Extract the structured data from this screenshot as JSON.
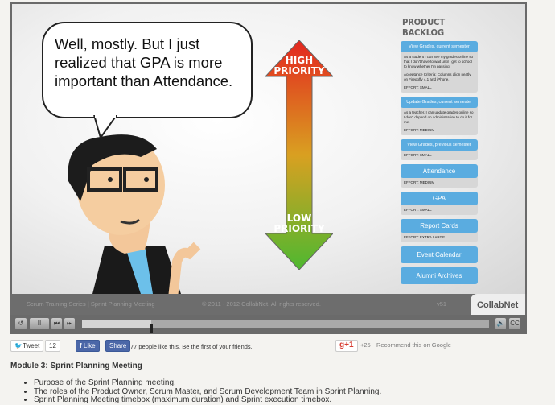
{
  "slide": {
    "speech": "Well, mostly. But I just realized that GPA is more important than Attendance.",
    "arrow": {
      "top_label": "HIGH PRIORITY",
      "bottom_label": "LOW PRIORITY"
    },
    "backlog": {
      "title": "PRODUCT BACKLOG",
      "cards": [
        {
          "title": "View Grades, current semester",
          "body": [
            "As a student I can see my grades online so that I don't have to wait until I get to school to know whether I'm passing.",
            "Acceptance Criteria: Columns align neatly on Firegoffy 4.1 and iPhone."
          ],
          "effort": "EFFORT: SMALL"
        },
        {
          "title": "Update Grades, current semester",
          "body": [
            "As a teacher, I can update grades online so I don't depend on administration to do it for me."
          ],
          "effort": "EFFORT: MEDIUM"
        },
        {
          "title": "View Grades, previous semester",
          "body": [],
          "effort": "EFFORT: SMALL"
        },
        {
          "title": "Attendance",
          "body": [],
          "effort": "EFFORT: MEDIUM"
        },
        {
          "title": "GPA",
          "body": [],
          "effort": "EFFORT: SMALL"
        },
        {
          "title": "Report Cards",
          "body": [],
          "effort": "EFFORT: EXTRA LARGE"
        }
      ],
      "buttons": [
        "Event Calendar",
        "Alumni Archives"
      ]
    }
  },
  "footer": {
    "series": "Scrum Training Series | Sprint Planning Meeting",
    "copyright": "© 2011 - 2012 CollabNet. All rights reserved.",
    "version": "v51",
    "logo": "CollabNet"
  },
  "controls": {
    "replay": "↺",
    "pause": "II",
    "prev": "⏮",
    "next": "⏭",
    "volume": "🔊",
    "cc": "CC",
    "progress_percent": 17
  },
  "social": {
    "tweet": "Tweet",
    "tweet_count": "12",
    "like": "Like",
    "share": "Share",
    "like_text": "77 people like this. Be the first of your friends.",
    "gplus": "g+1",
    "gplus_count": "+25",
    "gplus_text": "Recommend this on Google"
  },
  "module": {
    "title": "Module 3: Sprint Planning Meeting",
    "items": [
      "Purpose of the Sprint Planning meeting.",
      "The roles of the Product Owner, Scrum Master, and Scrum Development Team in Sprint Planning.",
      "Sprint Planning Meeting timebox (maximum duration) and Sprint execution timebox."
    ]
  }
}
